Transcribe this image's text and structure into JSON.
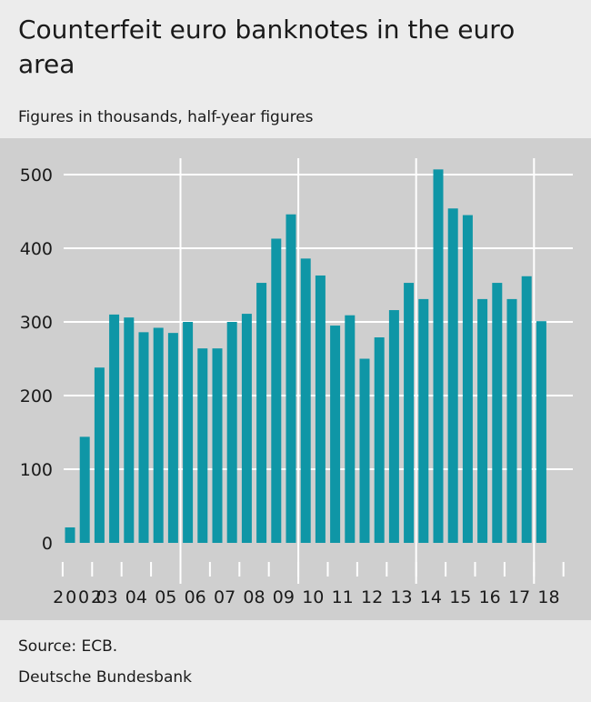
{
  "header": {
    "title": "Counterfeit euro banknotes in the euro area",
    "subtitle": "Figures in thousands, half-year figures"
  },
  "footer": {
    "source": "Source: ECB.",
    "publisher": "Deutsche Bundesbank"
  },
  "colors": {
    "bar": "#0f96a6",
    "plot_background": "#cfcfcf",
    "grid": "#ffffff",
    "text": "#1a1a1a"
  },
  "chart_data": {
    "type": "bar",
    "title": "Counterfeit euro banknotes in the euro area",
    "subtitle": "Figures in thousands, half-year figures",
    "xlabel": "",
    "ylabel": "",
    "ylim": [
      0,
      500
    ],
    "yticks": [
      0,
      100,
      200,
      300,
      400,
      500
    ],
    "grid": true,
    "year_labels": [
      "2002",
      "03",
      "04",
      "05",
      "06",
      "07",
      "08",
      "09",
      "10",
      "11",
      "12",
      "13",
      "14",
      "15",
      "16",
      "17",
      "18"
    ],
    "categories": [
      "2002 H1",
      "2002 H2",
      "2003 H1",
      "2003 H2",
      "2004 H1",
      "2004 H2",
      "2005 H1",
      "2005 H2",
      "2006 H1",
      "2006 H2",
      "2007 H1",
      "2007 H2",
      "2008 H1",
      "2008 H2",
      "2009 H1",
      "2009 H2",
      "2010 H1",
      "2010 H2",
      "2011 H1",
      "2011 H2",
      "2012 H1",
      "2012 H2",
      "2013 H1",
      "2013 H2",
      "2014 H1",
      "2014 H2",
      "2015 H1",
      "2015 H2",
      "2016 H1",
      "2016 H2",
      "2017 H1",
      "2017 H2",
      "2018 H1"
    ],
    "values": [
      21,
      144,
      238,
      310,
      306,
      286,
      292,
      285,
      300,
      264,
      264,
      300,
      311,
      353,
      413,
      446,
      386,
      363,
      295,
      309,
      250,
      279,
      316,
      353,
      331,
      507,
      454,
      445,
      331,
      353,
      331,
      362,
      301
    ],
    "emphasis_gridlines_after_years": [
      "05",
      "09",
      "13",
      "17"
    ]
  }
}
